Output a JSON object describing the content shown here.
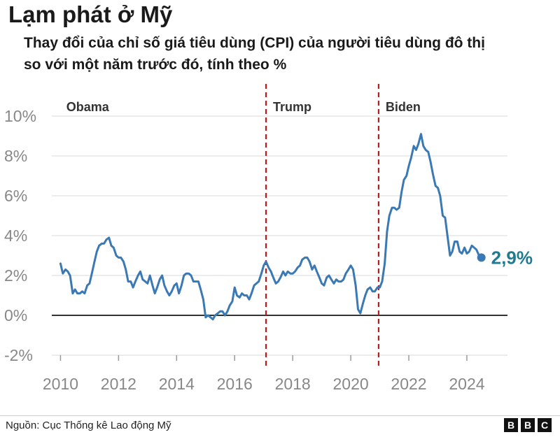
{
  "title": "Lạm phát ở Mỹ",
  "subtitle": "Thay đổi của chỉ số giá tiêu dùng (CPI) của người tiêu dùng đô thị so với một năm trước đó, tính theo %",
  "source": "Nguồn: Cục Thống kê Lao động Mỹ",
  "logo": [
    "B",
    "B",
    "C"
  ],
  "colors": {
    "line": "#3b79b4",
    "divider": "#b81d1d",
    "zero_line": "#333333",
    "grid": "#d9d9d9",
    "end_label": "#1f7b8f"
  },
  "chart_data": {
    "type": "line",
    "title": "Lạm phát ở Mỹ",
    "xlabel": "",
    "ylabel": "",
    "xlim": [
      2009.7,
      2025.4
    ],
    "ylim": [
      -2,
      10
    ],
    "yticks": [
      -2,
      0,
      2,
      4,
      6,
      8,
      10
    ],
    "ytick_labels": [
      "-2%",
      "0%",
      "2%",
      "4%",
      "6%",
      "8%",
      "10%"
    ],
    "xticks": [
      2010,
      2012,
      2014,
      2016,
      2018,
      2020,
      2022,
      2024
    ],
    "xtick_labels": [
      "2010",
      "2012",
      "2014",
      "2016",
      "2018",
      "2020",
      "2022",
      "2024"
    ],
    "grid": true,
    "periods": [
      {
        "label": "Obama",
        "start": 2009
      },
      {
        "label": "Trump",
        "start": 2017.08
      },
      {
        "label": "Biden",
        "start": 2020.96
      }
    ],
    "end_label": "2,9%",
    "series": [
      {
        "points": [
          [
            2010.0,
            2.6
          ],
          [
            2010.08,
            2.1
          ],
          [
            2010.17,
            2.3
          ],
          [
            2010.25,
            2.2
          ],
          [
            2010.33,
            2.0
          ],
          [
            2010.42,
            1.1
          ],
          [
            2010.5,
            1.3
          ],
          [
            2010.58,
            1.1
          ],
          [
            2010.67,
            1.1
          ],
          [
            2010.75,
            1.2
          ],
          [
            2010.83,
            1.1
          ],
          [
            2010.92,
            1.5
          ],
          [
            2011.0,
            1.6
          ],
          [
            2011.08,
            2.1
          ],
          [
            2011.17,
            2.7
          ],
          [
            2011.25,
            3.2
          ],
          [
            2011.33,
            3.5
          ],
          [
            2011.42,
            3.6
          ],
          [
            2011.5,
            3.6
          ],
          [
            2011.58,
            3.8
          ],
          [
            2011.67,
            3.9
          ],
          [
            2011.75,
            3.5
          ],
          [
            2011.83,
            3.4
          ],
          [
            2011.92,
            3.0
          ],
          [
            2012.0,
            2.9
          ],
          [
            2012.08,
            2.9
          ],
          [
            2012.17,
            2.7
          ],
          [
            2012.25,
            2.3
          ],
          [
            2012.33,
            1.7
          ],
          [
            2012.42,
            1.7
          ],
          [
            2012.5,
            1.4
          ],
          [
            2012.58,
            1.7
          ],
          [
            2012.67,
            2.0
          ],
          [
            2012.75,
            2.2
          ],
          [
            2012.83,
            1.8
          ],
          [
            2012.92,
            1.7
          ],
          [
            2013.0,
            1.6
          ],
          [
            2013.08,
            2.0
          ],
          [
            2013.17,
            1.5
          ],
          [
            2013.25,
            1.1
          ],
          [
            2013.33,
            1.4
          ],
          [
            2013.42,
            1.8
          ],
          [
            2013.5,
            2.0
          ],
          [
            2013.58,
            1.5
          ],
          [
            2013.67,
            1.2
          ],
          [
            2013.75,
            1.0
          ],
          [
            2013.83,
            1.2
          ],
          [
            2013.92,
            1.5
          ],
          [
            2014.0,
            1.6
          ],
          [
            2014.08,
            1.1
          ],
          [
            2014.17,
            1.5
          ],
          [
            2014.25,
            2.0
          ],
          [
            2014.33,
            2.1
          ],
          [
            2014.42,
            2.1
          ],
          [
            2014.5,
            2.0
          ],
          [
            2014.58,
            1.7
          ],
          [
            2014.67,
            1.7
          ],
          [
            2014.75,
            1.7
          ],
          [
            2014.83,
            1.3
          ],
          [
            2014.92,
            0.8
          ],
          [
            2015.0,
            -0.1
          ],
          [
            2015.08,
            0.0
          ],
          [
            2015.17,
            -0.1
          ],
          [
            2015.25,
            -0.2
          ],
          [
            2015.33,
            0.0
          ],
          [
            2015.42,
            0.1
          ],
          [
            2015.5,
            0.2
          ],
          [
            2015.58,
            0.2
          ],
          [
            2015.67,
            0.0
          ],
          [
            2015.75,
            0.2
          ],
          [
            2015.83,
            0.5
          ],
          [
            2015.92,
            0.7
          ],
          [
            2016.0,
            1.4
          ],
          [
            2016.08,
            1.0
          ],
          [
            2016.17,
            0.9
          ],
          [
            2016.25,
            1.1
          ],
          [
            2016.33,
            1.0
          ],
          [
            2016.42,
            1.0
          ],
          [
            2016.5,
            0.8
          ],
          [
            2016.58,
            1.1
          ],
          [
            2016.67,
            1.5
          ],
          [
            2016.75,
            1.6
          ],
          [
            2016.83,
            1.7
          ],
          [
            2016.92,
            2.1
          ],
          [
            2017.0,
            2.5
          ],
          [
            2017.08,
            2.7
          ],
          [
            2017.17,
            2.4
          ],
          [
            2017.25,
            2.2
          ],
          [
            2017.33,
            1.9
          ],
          [
            2017.42,
            1.6
          ],
          [
            2017.5,
            1.7
          ],
          [
            2017.58,
            1.9
          ],
          [
            2017.67,
            2.2
          ],
          [
            2017.75,
            2.0
          ],
          [
            2017.83,
            2.2
          ],
          [
            2017.92,
            2.1
          ],
          [
            2018.0,
            2.1
          ],
          [
            2018.08,
            2.2
          ],
          [
            2018.17,
            2.4
          ],
          [
            2018.25,
            2.5
          ],
          [
            2018.33,
            2.8
          ],
          [
            2018.42,
            2.9
          ],
          [
            2018.5,
            2.9
          ],
          [
            2018.58,
            2.7
          ],
          [
            2018.67,
            2.3
          ],
          [
            2018.75,
            2.5
          ],
          [
            2018.83,
            2.2
          ],
          [
            2018.92,
            1.9
          ],
          [
            2019.0,
            1.6
          ],
          [
            2019.08,
            1.5
          ],
          [
            2019.17,
            1.9
          ],
          [
            2019.25,
            2.0
          ],
          [
            2019.33,
            1.8
          ],
          [
            2019.42,
            1.6
          ],
          [
            2019.5,
            1.8
          ],
          [
            2019.58,
            1.7
          ],
          [
            2019.67,
            1.7
          ],
          [
            2019.75,
            1.8
          ],
          [
            2019.83,
            2.1
          ],
          [
            2019.92,
            2.3
          ],
          [
            2020.0,
            2.5
          ],
          [
            2020.08,
            2.3
          ],
          [
            2020.17,
            1.5
          ],
          [
            2020.25,
            0.3
          ],
          [
            2020.33,
            0.1
          ],
          [
            2020.42,
            0.6
          ],
          [
            2020.5,
            1.0
          ],
          [
            2020.58,
            1.3
          ],
          [
            2020.67,
            1.4
          ],
          [
            2020.75,
            1.2
          ],
          [
            2020.83,
            1.2
          ],
          [
            2020.92,
            1.4
          ],
          [
            2021.0,
            1.4
          ],
          [
            2021.08,
            1.7
          ],
          [
            2021.17,
            2.6
          ],
          [
            2021.25,
            4.2
          ],
          [
            2021.33,
            5.0
          ],
          [
            2021.42,
            5.4
          ],
          [
            2021.5,
            5.4
          ],
          [
            2021.58,
            5.3
          ],
          [
            2021.67,
            5.4
          ],
          [
            2021.75,
            6.2
          ],
          [
            2021.83,
            6.8
          ],
          [
            2021.92,
            7.0
          ],
          [
            2022.0,
            7.5
          ],
          [
            2022.08,
            7.9
          ],
          [
            2022.17,
            8.5
          ],
          [
            2022.25,
            8.3
          ],
          [
            2022.33,
            8.6
          ],
          [
            2022.42,
            9.1
          ],
          [
            2022.5,
            8.5
          ],
          [
            2022.58,
            8.3
          ],
          [
            2022.67,
            8.2
          ],
          [
            2022.75,
            7.7
          ],
          [
            2022.83,
            7.1
          ],
          [
            2022.92,
            6.5
          ],
          [
            2023.0,
            6.4
          ],
          [
            2023.08,
            6.0
          ],
          [
            2023.17,
            5.0
          ],
          [
            2023.25,
            4.9
          ],
          [
            2023.33,
            4.0
          ],
          [
            2023.42,
            3.0
          ],
          [
            2023.5,
            3.2
          ],
          [
            2023.58,
            3.7
          ],
          [
            2023.67,
            3.7
          ],
          [
            2023.75,
            3.2
          ],
          [
            2023.83,
            3.1
          ],
          [
            2023.92,
            3.4
          ],
          [
            2024.0,
            3.1
          ],
          [
            2024.08,
            3.2
          ],
          [
            2024.17,
            3.5
          ],
          [
            2024.25,
            3.4
          ],
          [
            2024.33,
            3.3
          ],
          [
            2024.42,
            3.0
          ],
          [
            2024.5,
            2.9
          ]
        ]
      }
    ]
  }
}
